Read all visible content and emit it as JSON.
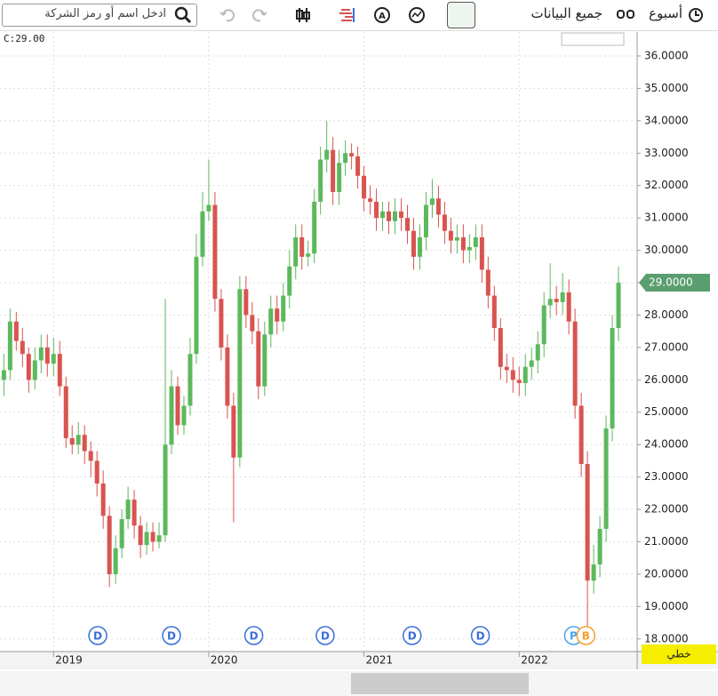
{
  "toolbar": {
    "period": "أسبوع",
    "range": "جميع البيانات",
    "search_placeholder": "ادخل اسم أو رمز الشركة",
    "chart_style": "خطي"
  },
  "chart_data": {
    "type": "candlestick",
    "last_label": "C:29.00",
    "x": [
      2018.68,
      2018.72,
      2018.76,
      2018.8,
      2018.84,
      2018.88,
      2018.92,
      2018.96,
      2019.0,
      2019.04,
      2019.08,
      2019.12,
      2019.16,
      2019.2,
      2019.24,
      2019.28,
      2019.32,
      2019.36,
      2019.4,
      2019.44,
      2019.48,
      2019.52,
      2019.56,
      2019.6,
      2019.64,
      2019.68,
      2019.72,
      2019.76,
      2019.8,
      2019.84,
      2019.88,
      2019.92,
      2019.96,
      2020.0,
      2020.04,
      2020.08,
      2020.12,
      2020.16,
      2020.2,
      2020.24,
      2020.28,
      2020.32,
      2020.36,
      2020.4,
      2020.44,
      2020.48,
      2020.52,
      2020.56,
      2020.6,
      2020.64,
      2020.68,
      2020.72,
      2020.76,
      2020.8,
      2020.84,
      2020.88,
      2020.92,
      2020.96,
      2021.0,
      2021.04,
      2021.08,
      2021.12,
      2021.16,
      2021.2,
      2021.24,
      2021.28,
      2021.32,
      2021.36,
      2021.4,
      2021.44,
      2021.48,
      2021.52,
      2021.56,
      2021.6,
      2021.64,
      2021.68,
      2021.72,
      2021.76,
      2021.8,
      2021.84,
      2021.88,
      2021.92,
      2021.96,
      2022.0,
      2022.04,
      2022.08,
      2022.12,
      2022.16,
      2022.2,
      2022.24,
      2022.28,
      2022.32,
      2022.36,
      2022.4,
      2022.44,
      2022.48,
      2022.52,
      2022.56,
      2022.6,
      2022.64
    ],
    "open": [
      26.0,
      26.3,
      27.8,
      27.2,
      26.8,
      26.0,
      26.6,
      27.0,
      26.5,
      26.8,
      25.8,
      24.2,
      24.0,
      24.3,
      23.8,
      23.5,
      22.8,
      21.8,
      20.0,
      20.8,
      21.7,
      22.3,
      21.5,
      20.9,
      21.3,
      21.0,
      21.2,
      24.0,
      25.8,
      24.6,
      25.2,
      26.8,
      29.8,
      31.2,
      31.4,
      28.5,
      27.0,
      25.2,
      23.6,
      28.8,
      28.0,
      27.5,
      25.8,
      27.4,
      28.2,
      27.8,
      28.6,
      29.5,
      30.4,
      29.8,
      29.9,
      31.5,
      32.8,
      33.1,
      31.8,
      32.7,
      33.0,
      32.9,
      32.3,
      31.6,
      31.5,
      31.0,
      31.2,
      30.9,
      31.2,
      31.0,
      30.6,
      29.8,
      30.4,
      31.4,
      31.6,
      31.1,
      30.6,
      30.3,
      30.4,
      30.0,
      30.1,
      30.4,
      29.4,
      28.6,
      27.6,
      26.4,
      26.3,
      26.0,
      25.9,
      26.4,
      26.6,
      27.1,
      28.3,
      28.5,
      28.4,
      28.7,
      27.8,
      25.2,
      23.4,
      19.8,
      20.3,
      21.4,
      24.5,
      27.6
    ],
    "high": [
      26.8,
      28.2,
      28.1,
      27.6,
      27.0,
      27.0,
      27.4,
      27.4,
      27.3,
      27.2,
      26.1,
      24.6,
      24.7,
      24.6,
      24.1,
      23.8,
      23.2,
      22.1,
      21.2,
      22.0,
      22.7,
      22.6,
      21.8,
      21.6,
      21.6,
      21.6,
      28.5,
      26.3,
      26.1,
      25.5,
      27.3,
      30.5,
      31.8,
      32.8,
      31.8,
      28.8,
      27.4,
      25.6,
      29.2,
      29.2,
      28.4,
      27.9,
      27.8,
      28.6,
      28.6,
      29.0,
      30.0,
      30.8,
      30.8,
      30.3,
      31.9,
      33.2,
      34.0,
      33.5,
      33.1,
      33.4,
      33.3,
      33.2,
      32.6,
      32.0,
      31.9,
      31.5,
      31.5,
      31.6,
      31.6,
      31.4,
      31.0,
      30.8,
      31.8,
      32.2,
      32.0,
      31.5,
      31.0,
      30.8,
      30.8,
      30.5,
      30.8,
      30.8,
      29.8,
      28.9,
      27.9,
      26.8,
      26.7,
      26.4,
      26.8,
      27.0,
      27.5,
      28.7,
      29.6,
      28.9,
      29.3,
      29.1,
      28.2,
      25.6,
      23.8,
      20.9,
      21.8,
      24.9,
      28.0,
      29.5
    ],
    "low": [
      25.5,
      26.0,
      26.9,
      26.4,
      25.6,
      25.7,
      26.2,
      26.1,
      26.1,
      25.5,
      23.9,
      23.7,
      23.7,
      23.4,
      23.0,
      22.4,
      21.4,
      19.6,
      19.7,
      20.5,
      21.4,
      21.1,
      20.5,
      20.6,
      20.7,
      20.8,
      21.0,
      23.7,
      24.3,
      24.3,
      24.9,
      26.5,
      29.5,
      30.9,
      28.1,
      26.6,
      24.8,
      21.6,
      23.3,
      27.6,
      27.1,
      25.4,
      25.5,
      27.0,
      27.4,
      27.5,
      28.2,
      29.1,
      29.4,
      29.5,
      29.6,
      31.1,
      32.4,
      31.4,
      31.4,
      32.3,
      32.5,
      31.9,
      31.2,
      31.1,
      30.6,
      30.6,
      30.5,
      30.5,
      30.6,
      30.2,
      29.4,
      29.4,
      30.0,
      31.0,
      30.7,
      30.2,
      29.9,
      29.9,
      29.6,
      29.6,
      29.7,
      29.0,
      28.2,
      27.2,
      26.0,
      25.9,
      25.6,
      25.5,
      25.5,
      26.0,
      26.2,
      26.7,
      27.9,
      28.0,
      28.0,
      27.4,
      24.8,
      23.0,
      18.4,
      19.4,
      19.9,
      21.0,
      24.1,
      27.2
    ],
    "close": [
      26.3,
      27.8,
      27.2,
      26.8,
      26.0,
      26.6,
      27.0,
      26.5,
      26.8,
      25.8,
      24.2,
      24.0,
      24.3,
      23.8,
      23.5,
      22.8,
      21.8,
      20.0,
      20.8,
      21.7,
      22.3,
      21.5,
      20.9,
      21.3,
      21.0,
      21.2,
      24.0,
      25.8,
      24.6,
      25.2,
      26.8,
      29.8,
      31.2,
      31.4,
      28.5,
      27.0,
      25.2,
      23.6,
      28.8,
      28.0,
      27.5,
      25.8,
      27.4,
      28.2,
      27.8,
      28.6,
      29.5,
      30.4,
      29.8,
      29.9,
      31.5,
      32.8,
      33.1,
      31.8,
      32.7,
      33.0,
      32.9,
      32.3,
      31.6,
      31.5,
      31.0,
      31.2,
      30.9,
      31.2,
      31.0,
      30.6,
      29.8,
      30.4,
      31.4,
      31.6,
      31.1,
      30.6,
      30.3,
      30.4,
      30.0,
      30.1,
      30.4,
      29.4,
      28.6,
      27.6,
      26.4,
      26.3,
      26.0,
      25.9,
      26.4,
      26.6,
      27.1,
      28.3,
      28.5,
      28.4,
      28.7,
      27.8,
      25.2,
      23.4,
      19.8,
      20.3,
      21.4,
      24.5,
      27.6,
      29.0
    ],
    "up_color": "#5cb85c",
    "down_color": "#d9534f",
    "xlim": [
      2018.655,
      2022.76
    ],
    "xticks": [
      2019,
      2020,
      2021,
      2022
    ],
    "ylim": [
      17.61,
      36.74
    ],
    "yticks": [
      {
        "value": 18,
        "label": "18.0000"
      },
      {
        "value": 19,
        "label": "19.0000"
      },
      {
        "value": 20,
        "label": "20.0000"
      },
      {
        "value": 21,
        "label": "21.0000"
      },
      {
        "value": 22,
        "label": "22.0000"
      },
      {
        "value": 23,
        "label": "23.0000"
      },
      {
        "value": 24,
        "label": "24.0000"
      },
      {
        "value": 25,
        "label": "25.0000"
      },
      {
        "value": 26,
        "label": "26.0000"
      },
      {
        "value": 27,
        "label": "27.0000"
      },
      {
        "value": 28,
        "label": "28.0000"
      },
      {
        "value": 29,
        "label": "29.0000"
      },
      {
        "value": 30,
        "label": "30.0000"
      },
      {
        "value": 31,
        "label": "31.0000"
      },
      {
        "value": 32,
        "label": "32.0000"
      },
      {
        "value": 33,
        "label": "33.0000"
      },
      {
        "value": 34,
        "label": "34.0000"
      },
      {
        "value": 35,
        "label": "35.0000"
      },
      {
        "value": 36,
        "label": "36.0000"
      }
    ],
    "grid": true,
    "last_price": {
      "value": 29,
      "label": "29.0000"
    },
    "events": [
      {
        "x": 2019.285,
        "label": "D",
        "color": "#3a6fd8"
      },
      {
        "x": 2019.76,
        "label": "D",
        "color": "#3a6fd8"
      },
      {
        "x": 2020.29,
        "label": "D",
        "color": "#3a6fd8"
      },
      {
        "x": 2020.75,
        "label": "D",
        "color": "#3a6fd8"
      },
      {
        "x": 2021.31,
        "label": "D",
        "color": "#3a6fd8"
      },
      {
        "x": 2021.75,
        "label": "D",
        "color": "#3a6fd8"
      },
      {
        "x": 2022.35,
        "label": "P",
        "color": "#4aa3e8"
      },
      {
        "x": 2022.43,
        "label": "B",
        "color": "#f0a030"
      }
    ]
  }
}
